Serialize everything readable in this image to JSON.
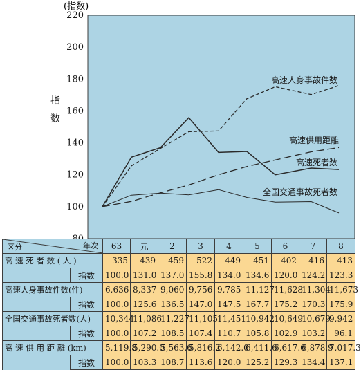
{
  "colors": {
    "plot_bg": "#add4e4",
    "header_bg": "#add4e4",
    "value_bg": "#fbd893",
    "line": "#2a2a2a",
    "grid": "#ffffff"
  },
  "chart_data": {
    "type": "line",
    "ylabel_unit": "(指数)",
    "ylabel": "指数",
    "ylim": [
      80,
      220
    ],
    "yticks": [
      80,
      100,
      120,
      140,
      160,
      180,
      200,
      220
    ],
    "categories": [
      "63",
      "元",
      "2",
      "3",
      "4",
      "5",
      "6",
      "7",
      "8"
    ],
    "grid": false,
    "series": [
      {
        "name": "高速人身事故件数",
        "style": "dashed-short",
        "values": [
          100.0,
          125.6,
          136.5,
          147.0,
          147.5,
          167.7,
          175.2,
          170.3,
          175.9
        ]
      },
      {
        "name": "高速供用距離",
        "style": "dashed-long",
        "values": [
          100.0,
          103.3,
          108.7,
          113.6,
          120.0,
          125.2,
          129.3,
          134.4,
          137.1
        ]
      },
      {
        "name": "高速死者数",
        "style": "solid",
        "values": [
          100.0,
          131.0,
          137.0,
          155.8,
          134.0,
          134.6,
          120.0,
          124.2,
          123.3
        ]
      },
      {
        "name": "全国交通事故死者数",
        "style": "solid-thin",
        "values": [
          100.0,
          107.2,
          108.5,
          107.4,
          110.7,
          105.8,
          102.9,
          103.2,
          96.1
        ]
      }
    ]
  },
  "table": {
    "header_category": "区分",
    "header_year": "年次",
    "years": [
      "63",
      "元",
      "2",
      "3",
      "4",
      "5",
      "6",
      "7",
      "8"
    ],
    "index_label": "指数",
    "rows": [
      {
        "label": "高 速 死 者 数 ( 人 )",
        "values": [
          "335",
          "439",
          "459",
          "522",
          "449",
          "451",
          "402",
          "416",
          "413"
        ],
        "index": [
          "100.0",
          "131.0",
          "137.0",
          "155.8",
          "134.0",
          "134.6",
          "120.0",
          "124.2",
          "123.3"
        ]
      },
      {
        "label": "高速人身事故件数(件)",
        "values": [
          "6,636",
          "8,337",
          "9,060",
          "9,756",
          "9,785",
          "11,127",
          "11,628",
          "11,304",
          "11,673"
        ],
        "index": [
          "100.0",
          "125.6",
          "136.5",
          "147.0",
          "147.5",
          "167.7",
          "175.2",
          "170.3",
          "175.9"
        ]
      },
      {
        "label": "全国交通事故死者数(人)",
        "values": [
          "10,344",
          "11,086",
          "11,227",
          "11,105",
          "11,451",
          "10,942",
          "10,649",
          "10,679",
          "9,942"
        ],
        "index": [
          "100.0",
          "107.2",
          "108.5",
          "107.4",
          "110.7",
          "105.8",
          "102.9",
          "103.2",
          "96.1"
        ]
      },
      {
        "label": "高 速 供 用 距 離 (km)",
        "values": [
          "5,119.8",
          "5,290.0",
          "5,563.6",
          "5,816.2",
          "6,142.0",
          "6,411.6",
          "6,617.6",
          "6,878.9",
          "7,017.3"
        ],
        "index": [
          "100.0",
          "103.3",
          "108.7",
          "113.6",
          "120.0",
          "125.2",
          "129.3",
          "134.4",
          "137.1"
        ]
      }
    ]
  }
}
